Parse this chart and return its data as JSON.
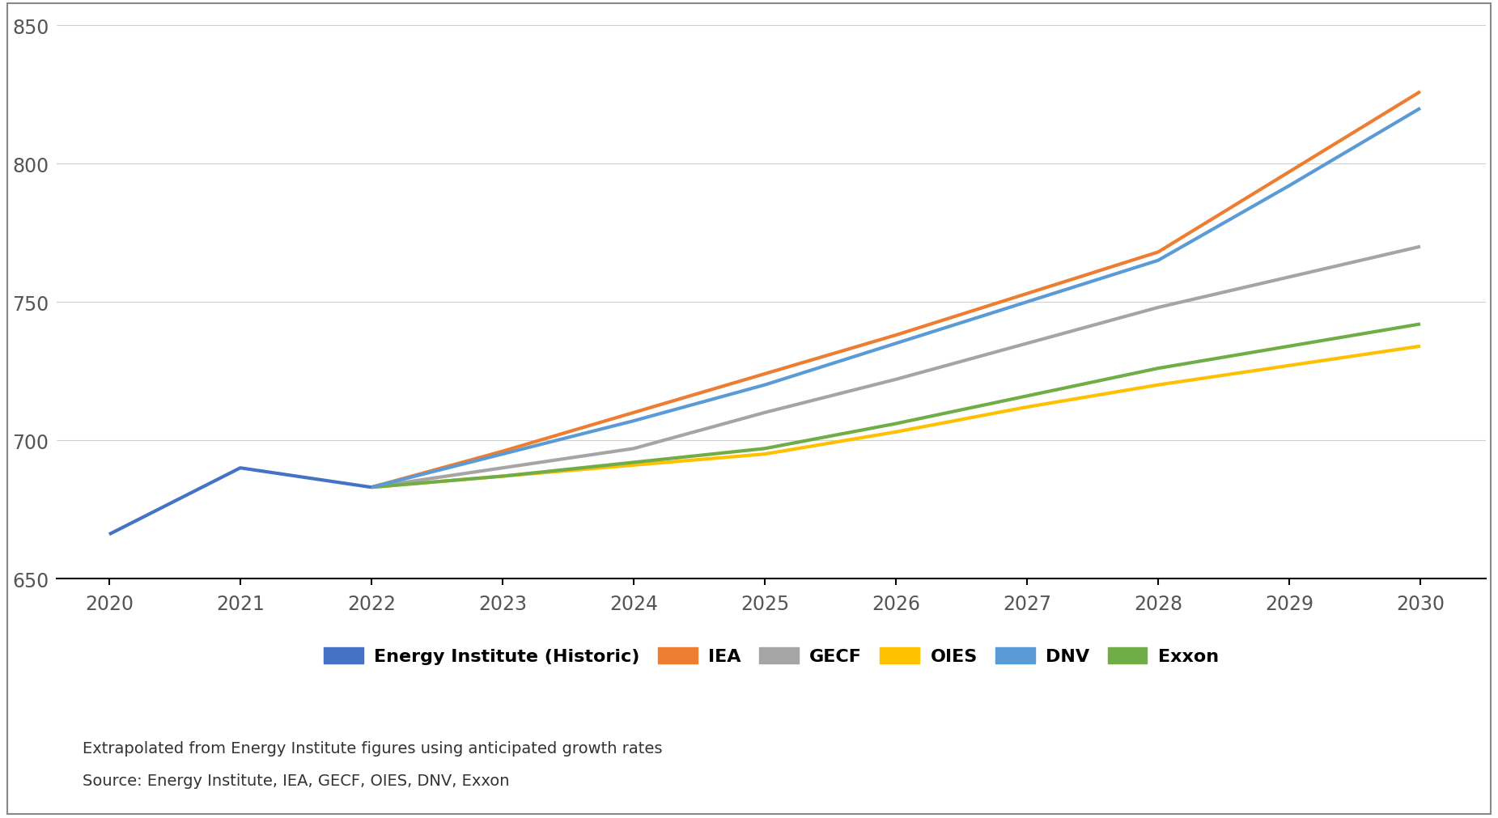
{
  "years_historic": [
    2020,
    2021,
    2022
  ],
  "years_forecast": [
    2022,
    2023,
    2024,
    2025,
    2026,
    2027,
    2028,
    2029,
    2030
  ],
  "energy_institute_historic": [
    666,
    690,
    683
  ],
  "iea": [
    683,
    696,
    710,
    724,
    738,
    753,
    768,
    797,
    826
  ],
  "gecf": [
    683,
    690,
    697,
    710,
    722,
    735,
    748,
    759,
    770
  ],
  "oies": [
    683,
    687,
    691,
    695,
    703,
    712,
    720,
    727,
    734
  ],
  "dnv": [
    683,
    695,
    707,
    720,
    735,
    750,
    765,
    792,
    820
  ],
  "exxon": [
    683,
    687,
    692,
    697,
    706,
    716,
    726,
    734,
    742
  ],
  "colors": {
    "energy_institute": "#4472C4",
    "iea": "#ED7D31",
    "gecf": "#A5A5A5",
    "oies": "#FFC000",
    "dnv": "#5B9BD5",
    "exxon": "#70AD47"
  },
  "ylim": [
    650,
    855
  ],
  "yticks": [
    650,
    700,
    750,
    800,
    850
  ],
  "xlim": [
    2019.6,
    2030.5
  ],
  "xticks": [
    2020,
    2021,
    2022,
    2023,
    2024,
    2025,
    2026,
    2027,
    2028,
    2029,
    2030
  ],
  "legend_labels": [
    "Energy Institute (Historic)",
    "IEA",
    "GECF",
    "OIES",
    "DNV",
    "Exxon"
  ],
  "footnote_line1": "Extrapolated from Energy Institute figures using anticipated growth rates",
  "footnote_line2": "Source: Energy Institute, IEA, GECF, OIES, DNV, Exxon",
  "line_width": 3.0,
  "background_color": "#FFFFFF"
}
